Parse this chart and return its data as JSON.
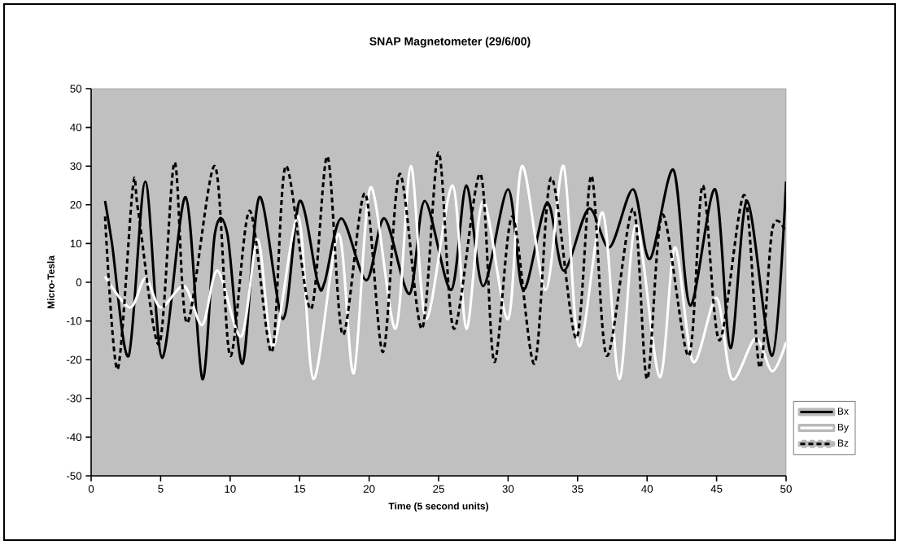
{
  "chart_data": {
    "type": "line",
    "title": "SNAP Magnetometer (29/6/00)",
    "xlabel": "Time (5 second units)",
    "ylabel": "Micro-Tesla",
    "xlim": [
      0,
      50
    ],
    "xticks": [
      0,
      5,
      10,
      15,
      20,
      25,
      30,
      35,
      40,
      45,
      50
    ],
    "ylim": [
      -50,
      50
    ],
    "yticks": [
      -50,
      -40,
      -30,
      -20,
      -10,
      0,
      10,
      20,
      30,
      40,
      50
    ],
    "grid": false,
    "legend": "right",
    "series": [
      {
        "name": "Bx",
        "color": "#000000",
        "line_style": "solid",
        "x": [
          1,
          1.5,
          2.7,
          3.9,
          5.1,
          6.8,
          8.0,
          8.9,
          9.8,
          10.9,
          12.1,
          13.8,
          15.0,
          16.3,
          16.8,
          18.0,
          19.8,
          21.1,
          22.9,
          24.0,
          25.9,
          27.0,
          28.2,
          30.0,
          31.1,
          32.8,
          34.0,
          35.8,
          37.3,
          39.0,
          40.2,
          41.9,
          43.1,
          44.9,
          46.0,
          47.2,
          49.0,
          50.0
        ],
        "values": [
          21,
          10,
          -19,
          26,
          -19.5,
          22,
          -25,
          12.5,
          12.5,
          -21,
          22,
          -9.5,
          21,
          0,
          0,
          16.5,
          0.5,
          16.5,
          -3,
          21,
          -2,
          25,
          -1,
          24,
          -2,
          20.5,
          3,
          19,
          9,
          24,
          6,
          29,
          -6,
          24,
          -17,
          21,
          -19,
          26
        ]
      },
      {
        "name": "By",
        "color": "#ffffff",
        "line_style": "solid",
        "x": [
          1,
          2.8,
          3.9,
          5.0,
          6.7,
          8.0,
          9.1,
          10.8,
          12.0,
          13.1,
          14.9,
          16.0,
          17.8,
          18.9,
          20.1,
          21.9,
          23.0,
          24.1,
          26.0,
          27.0,
          28.2,
          30.0,
          31.0,
          32.7,
          34.0,
          35.1,
          36.8,
          38.0,
          39.2,
          40.9,
          42.0,
          43.3,
          45.0,
          46.1,
          47.8,
          49.0,
          50
        ],
        "values": [
          1.5,
          -6.5,
          1,
          -6.5,
          -1,
          -11,
          3,
          -14,
          11,
          -16.5,
          17,
          -25,
          12.5,
          -23.5,
          24.5,
          -12,
          30,
          -9.5,
          25,
          -12,
          21,
          -9.5,
          30,
          -2,
          30,
          -16.5,
          18,
          -25,
          15,
          -24.5,
          9,
          -20.5,
          -4,
          -25,
          -14.5,
          -23,
          -15.5
        ]
      },
      {
        "name": "Bz",
        "color": "#000000",
        "line_style": "dashed",
        "x": [
          1,
          1.9,
          3.0,
          3.4,
          4.9,
          6.0,
          6.9,
          8.9,
          10.0,
          11.4,
          13.0,
          14.0,
          15.8,
          17.0,
          18.1,
          19.7,
          21.0,
          22.2,
          23.8,
          25.0,
          26.1,
          28.0,
          29.0,
          30.3,
          31.9,
          33.1,
          34.9,
          36.0,
          37.1,
          39.0,
          40.0,
          41.1,
          43.0,
          44.0,
          45.2,
          47.0,
          48.1,
          49.0,
          49.9
        ],
        "values": [
          17,
          -22.5,
          24.5,
          18,
          -16,
          31,
          -10.5,
          30,
          -19,
          18.5,
          -18,
          30,
          -7,
          32.5,
          -13.5,
          23,
          -18,
          28,
          -12,
          33.5,
          -12,
          28,
          -20.5,
          17,
          -21,
          27,
          -14.5,
          27.5,
          -19,
          19,
          -25,
          17.5,
          -19,
          25,
          -15,
          22.5,
          -22,
          13.5,
          13.5
        ]
      }
    ]
  }
}
